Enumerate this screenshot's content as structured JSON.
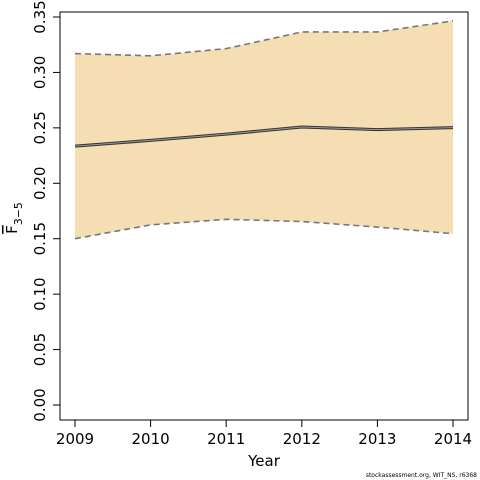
{
  "chart_data": {
    "type": "line",
    "title": "",
    "xlabel": "Year",
    "ylabel": "F",
    "ylabel_subscript": "3−5",
    "x": [
      2009,
      2010,
      2011,
      2012,
      2013,
      2014
    ],
    "xticks": [
      "2009",
      "2010",
      "2011",
      "2012",
      "2013",
      "2014"
    ],
    "yticks": [
      "0.00",
      "0.05",
      "0.10",
      "0.15",
      "0.20",
      "0.25",
      "0.30",
      "0.35"
    ],
    "xlim": [
      2009,
      2014
    ],
    "ylim": [
      0,
      0.35
    ],
    "grid": false,
    "series": [
      {
        "role": "estimate",
        "values": [
          0.2335,
          0.2387,
          0.2443,
          0.2508,
          0.2484,
          0.2502
        ],
        "color": "#333333",
        "style": "solid"
      },
      {
        "role": "upper",
        "values": [
          0.317,
          0.315,
          0.3215,
          0.3365,
          0.3365,
          0.3465
        ],
        "color": "#777777",
        "style": "dashed"
      },
      {
        "role": "lower",
        "values": [
          0.15,
          0.1625,
          0.1675,
          0.1655,
          0.1605,
          0.1545
        ],
        "color": "#777777",
        "style": "dashed"
      }
    ],
    "band_color": "#f5deb3",
    "annotation": "stockassessment.org, WIT_NS, r6368"
  }
}
